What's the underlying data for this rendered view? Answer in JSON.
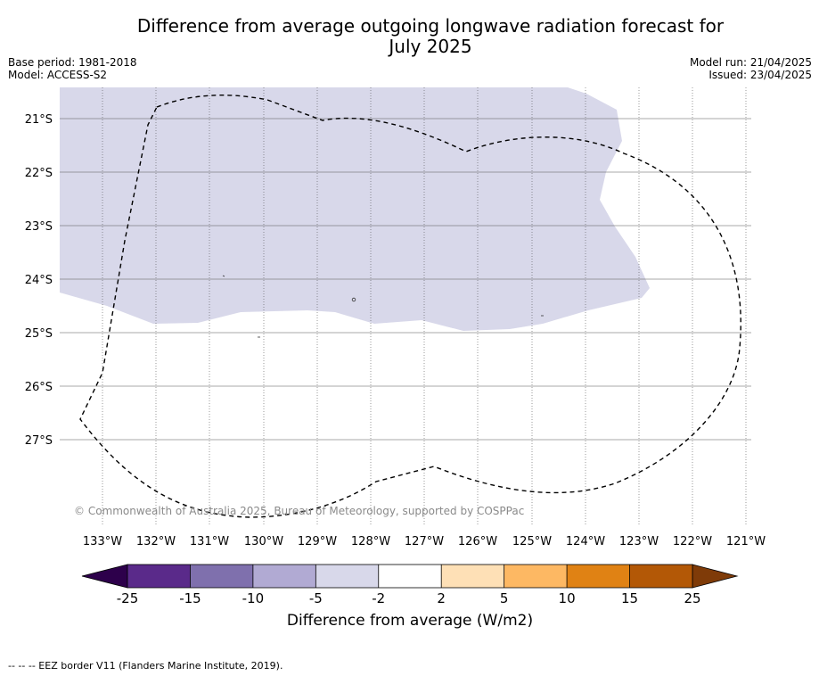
{
  "title_line1": "Difference from average outgoing longwave radiation forecast for",
  "title_line2": "July 2025",
  "meta_left": [
    "Base period: 1981-2018",
    "Model: ACCESS-S2"
  ],
  "meta_right": [
    "Model run: 21/04/2025",
    "Issued: 23/04/2025"
  ],
  "map": {
    "lat_labels": [
      "21°S",
      "22°S",
      "23°S",
      "24°S",
      "25°S",
      "26°S",
      "27°S"
    ],
    "lon_labels": [
      "133°W",
      "132°W",
      "131°W",
      "130°W",
      "129°W",
      "128°W",
      "127°W",
      "126°W",
      "125°W",
      "124°W",
      "123°W",
      "122°W",
      "121°W"
    ],
    "copyright": "© Commonwealth of Australia 2025, Bureau of Meteorology, supported by COSPPac",
    "region_fill": "#d8d8ea",
    "region_category": "-5 to -2"
  },
  "colorbar": {
    "ticks": [
      "-25",
      "-15",
      "-10",
      "-5",
      "-2",
      "2",
      "5",
      "10",
      "15",
      "25"
    ],
    "colors": [
      "#5a2a8a",
      "#7f70ad",
      "#b1aad3",
      "#d8d8ea",
      "#ffffff",
      "#fee0b6",
      "#fdb863",
      "#e08214",
      "#b35806"
    ],
    "low_extend_color": "#2d004b",
    "high_extend_color": "#7f3b08",
    "label": "Difference from average (W/m2)"
  },
  "footer": "--  --  -- EEZ border V11 (Flanders Marine Institute, 2019)."
}
